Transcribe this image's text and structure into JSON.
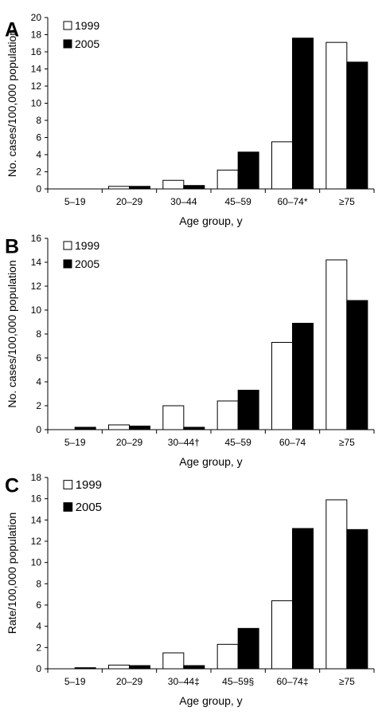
{
  "chart_data": [
    {
      "panel": "A",
      "type": "bar",
      "categories": [
        "5–19",
        "20–29",
        "30–44",
        "45–59",
        "60–74*",
        "≥75"
      ],
      "series": [
        {
          "name": "1999",
          "values": [
            0,
            0.3,
            1.0,
            2.2,
            5.5,
            17.1
          ],
          "color": "#ffffff"
        },
        {
          "name": "2005",
          "values": [
            0,
            0.3,
            0.4,
            4.3,
            17.6,
            14.8
          ],
          "color": "#000000"
        }
      ],
      "xlabel": "Age group, y",
      "ylabel": "No. cases/100,000 population",
      "ylim": [
        0,
        20
      ],
      "yticks": [
        0,
        2,
        4,
        6,
        8,
        10,
        12,
        14,
        16,
        18,
        20
      ],
      "legend": "top-left",
      "grid": false
    },
    {
      "panel": "B",
      "type": "bar",
      "categories": [
        "5–19",
        "20–29",
        "30–44†",
        "45–59",
        "60–74",
        "≥75"
      ],
      "series": [
        {
          "name": "1999",
          "values": [
            0,
            0.4,
            2.0,
            2.4,
            7.3,
            14.2
          ],
          "color": "#ffffff"
        },
        {
          "name": "2005",
          "values": [
            0.2,
            0.3,
            0.2,
            3.3,
            8.9,
            10.8
          ],
          "color": "#000000"
        }
      ],
      "xlabel": "Age group, y",
      "ylabel": "No. cases/100,000 population",
      "ylim": [
        0,
        16
      ],
      "yticks": [
        0,
        2,
        4,
        6,
        8,
        10,
        12,
        14,
        16
      ],
      "legend": "top-left",
      "grid": false
    },
    {
      "panel": "C",
      "type": "bar",
      "categories": [
        "5–19",
        "20–29",
        "30–44‡",
        "45–59§",
        "60–74‡",
        "≥75"
      ],
      "series": [
        {
          "name": "1999",
          "values": [
            0,
            0.35,
            1.5,
            2.3,
            6.4,
            15.9
          ],
          "color": "#ffffff"
        },
        {
          "name": "2005",
          "values": [
            0.1,
            0.3,
            0.3,
            3.8,
            13.2,
            13.1
          ],
          "color": "#000000"
        }
      ],
      "xlabel": "Age group, y",
      "ylabel": "Rate/100,000 population",
      "ylim": [
        0,
        18
      ],
      "yticks": [
        0,
        2,
        4,
        6,
        8,
        10,
        12,
        14,
        16,
        18
      ],
      "legend": "top-left",
      "grid": false
    }
  ]
}
